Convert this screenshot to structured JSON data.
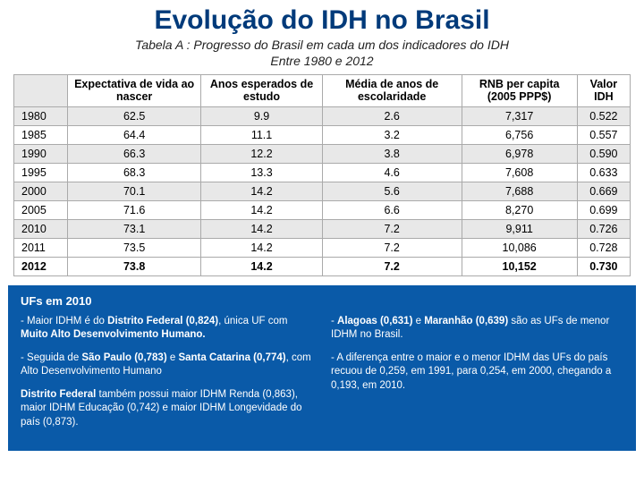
{
  "title": "Evolução do IDH no Brasil",
  "table": {
    "caption_line1": "Tabela A : Progresso do Brasil em cada um dos indicadores do IDH",
    "caption_line2": "Entre 1980 e 2012",
    "columns": [
      "Expectativa de vida ao nascer",
      "Anos esperados de estudo",
      "Média de anos de escolaridade",
      "RNB per capita (2005 PPP$)",
      "Valor IDH"
    ],
    "rows": [
      {
        "year": "1980",
        "vals": [
          "62.5",
          "9.9",
          "2.6",
          "7,317",
          "0.522"
        ],
        "alt": true
      },
      {
        "year": "1985",
        "vals": [
          "64.4",
          "11.1",
          "3.2",
          "6,756",
          "0.557"
        ],
        "alt": false
      },
      {
        "year": "1990",
        "vals": [
          "66.3",
          "12.2",
          "3.8",
          "6,978",
          "0.590"
        ],
        "alt": true
      },
      {
        "year": "1995",
        "vals": [
          "68.3",
          "13.3",
          "4.6",
          "7,608",
          "0.633"
        ],
        "alt": false
      },
      {
        "year": "2000",
        "vals": [
          "70.1",
          "14.2",
          "5.6",
          "7,688",
          "0.669"
        ],
        "alt": true
      },
      {
        "year": "2005",
        "vals": [
          "71.6",
          "14.2",
          "6.6",
          "8,270",
          "0.699"
        ],
        "alt": false
      },
      {
        "year": "2010",
        "vals": [
          "73.1",
          "14.2",
          "7.2",
          "9,911",
          "0.726"
        ],
        "alt": true
      },
      {
        "year": "2011",
        "vals": [
          "73.5",
          "14.2",
          "7.2",
          "10,086",
          "0.728"
        ],
        "alt": false
      },
      {
        "year": "2012",
        "vals": [
          "73.8",
          "14.2",
          "7.2",
          "10,152",
          "0.730"
        ],
        "alt": false,
        "bold": true
      }
    ]
  },
  "info": {
    "heading": "UFs em 2010",
    "left": [
      "- Maior IDHM é do <strong>Distrito Federal (0,824)</strong>, única UF com <strong>Muito Alto Desenvolvimento Humano.</strong>",
      "- Seguida de <strong>São Paulo (0,783)</strong> e <strong>Santa Catarina (0,774)</strong>, com Alto Desenvolvimento Humano",
      "<strong>Distrito Federal</strong> também possui maior IDHM Renda (0,863), maior IDHM Educação (0,742) e maior IDHM Longevidade do país (0,873)."
    ],
    "right": [
      "- <strong>Alagoas (0,631)</strong> e <strong>Maranhão (0,639)</strong> são as UFs de menor IDHM no Brasil.",
      "- A diferença entre o maior e o menor IDHM das UFs do país recuou de 0,259, em 1991, para 0,254, em 2000, chegando a 0,193, em 2010."
    ]
  },
  "colors": {
    "title": "#003a7a",
    "panel_bg": "#0a5aa8",
    "panel_text": "#ffffff",
    "row_alt": "#e8e8e8",
    "border": "#aaaaaa"
  }
}
